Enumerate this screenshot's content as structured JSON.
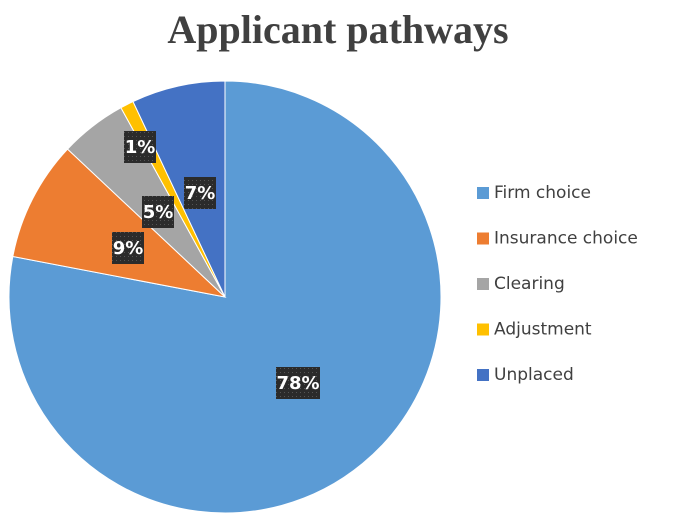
{
  "chart_data": {
    "type": "pie",
    "title": "Applicant pathways",
    "categories": [
      "Firm choice",
      "Insurance choice",
      "Clearing",
      "Adjustment",
      "Unplaced"
    ],
    "values": [
      78,
      9,
      5,
      1,
      7
    ],
    "value_labels": [
      "78%",
      "9%",
      "5%",
      "1%",
      "7%"
    ],
    "colors": [
      "#5b9bd5",
      "#ed7d31",
      "#a5a5a5",
      "#ffc000",
      "#4472c4"
    ],
    "legend": "right"
  }
}
